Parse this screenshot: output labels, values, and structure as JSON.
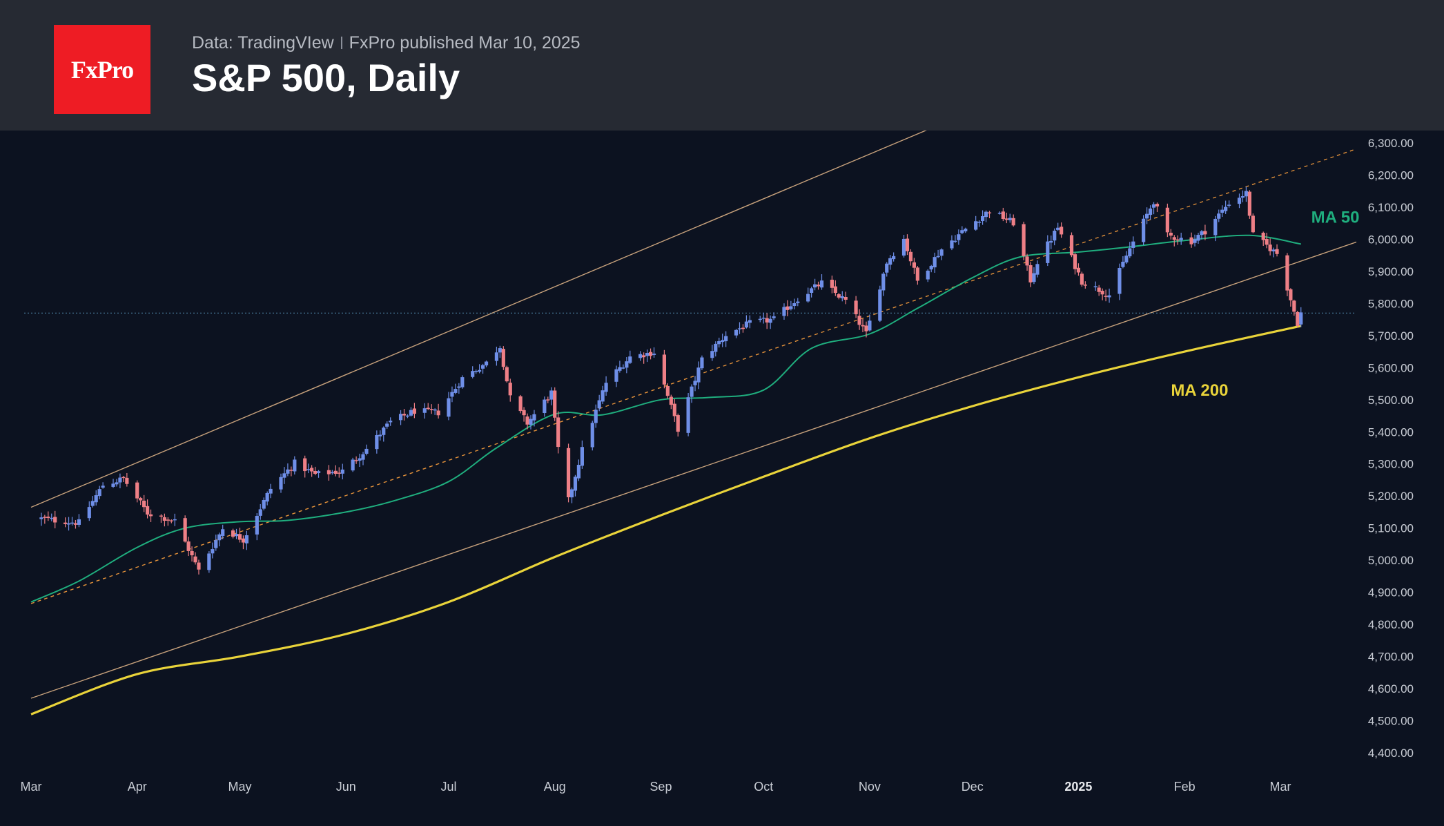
{
  "header": {
    "logo_text": "FxPro",
    "source_label": "Data: TradingVIew",
    "published_label": "FxPro published Mar 10, 2025",
    "title": "S&P 500, Daily"
  },
  "colors": {
    "background": "#0c1220",
    "header_background": "#262a33",
    "logo_red": "#ee1c24",
    "candle_up": "#6f8fe8",
    "candle_down": "#ee7f86",
    "ma50": "#1fae7e",
    "ma200": "#e9d33a",
    "channel": "#c8a27c",
    "channel_mid": "#e3913a",
    "price_line": "#4a7fa0"
  },
  "chart_data": {
    "type": "candlestick",
    "title": "S&P 500, Daily",
    "y_axis": {
      "ticks": [
        4400,
        4500,
        4600,
        4700,
        4800,
        4900,
        5000,
        5100,
        5200,
        5300,
        5400,
        5500,
        5600,
        5700,
        5800,
        5900,
        6000,
        6100,
        6200,
        6300
      ],
      "tick_labels": [
        "4,400.00",
        "4,500.00",
        "4,600.00",
        "4,700.00",
        "4,800.00",
        "4,900.00",
        "5,000.00",
        "5,100.00",
        "5,200.00",
        "5,300.00",
        "5,400.00",
        "5,500.00",
        "5,600.00",
        "5,700.00",
        "5,800.00",
        "5,900.00",
        "6,000.00",
        "6,100.00",
        "6,200.00",
        "6,300.00"
      ],
      "range": [
        4400,
        6310
      ],
      "side": "right"
    },
    "x_axis": {
      "range": [
        "2024-03-01",
        "2025-03-31"
      ],
      "ticks": [
        {
          "date": "2024-03-01",
          "label": "Mar",
          "bold": false
        },
        {
          "date": "2024-04-01",
          "label": "Apr",
          "bold": false
        },
        {
          "date": "2024-05-01",
          "label": "May",
          "bold": false
        },
        {
          "date": "2024-06-01",
          "label": "Jun",
          "bold": false
        },
        {
          "date": "2024-07-01",
          "label": "Jul",
          "bold": false
        },
        {
          "date": "2024-08-01",
          "label": "Aug",
          "bold": false
        },
        {
          "date": "2024-09-01",
          "label": "Sep",
          "bold": false
        },
        {
          "date": "2024-10-01",
          "label": "Oct",
          "bold": false
        },
        {
          "date": "2024-11-01",
          "label": "Nov",
          "bold": false
        },
        {
          "date": "2024-12-01",
          "label": "Dec",
          "bold": false
        },
        {
          "date": "2025-01-01",
          "label": "2025",
          "bold": true
        },
        {
          "date": "2025-02-01",
          "label": "Feb",
          "bold": false
        },
        {
          "date": "2025-03-01",
          "label": "Mar",
          "bold": false
        }
      ]
    },
    "close_path": [
      [
        "2024-03-04",
        5130
      ],
      [
        "2024-03-08",
        5124
      ],
      [
        "2024-03-15",
        5117
      ],
      [
        "2024-03-22",
        5234
      ],
      [
        "2024-03-28",
        5254
      ],
      [
        "2024-04-04",
        5147
      ],
      [
        "2024-04-12",
        5123
      ],
      [
        "2024-04-19",
        4967
      ],
      [
        "2024-04-26",
        5100
      ],
      [
        "2024-05-02",
        5064
      ],
      [
        "2024-05-10",
        5223
      ],
      [
        "2024-05-17",
        5303
      ],
      [
        "2024-05-23",
        5267
      ],
      [
        "2024-05-31",
        5278
      ],
      [
        "2024-06-07",
        5347
      ],
      [
        "2024-06-14",
        5431
      ],
      [
        "2024-06-21",
        5465
      ],
      [
        "2024-06-28",
        5460
      ],
      [
        "2024-07-05",
        5567
      ],
      [
        "2024-07-12",
        5615
      ],
      [
        "2024-07-16",
        5667
      ],
      [
        "2024-07-19",
        5505
      ],
      [
        "2024-07-24",
        5427
      ],
      [
        "2024-07-31",
        5522
      ],
      [
        "2024-08-02",
        5346
      ],
      [
        "2024-08-05",
        5186
      ],
      [
        "2024-08-09",
        5344
      ],
      [
        "2024-08-16",
        5554
      ],
      [
        "2024-08-23",
        5634
      ],
      [
        "2024-08-30",
        5648
      ],
      [
        "2024-09-06",
        5408
      ],
      [
        "2024-09-13",
        5626
      ],
      [
        "2024-09-20",
        5702
      ],
      [
        "2024-09-27",
        5738
      ],
      [
        "2024-10-04",
        5751
      ],
      [
        "2024-10-11",
        5815
      ],
      [
        "2024-10-18",
        5864
      ],
      [
        "2024-10-25",
        5808
      ],
      [
        "2024-10-31",
        5705
      ],
      [
        "2024-11-06",
        5929
      ],
      [
        "2024-11-11",
        6001
      ],
      [
        "2024-11-15",
        5870
      ],
      [
        "2024-11-22",
        5969
      ],
      [
        "2024-11-29",
        6032
      ],
      [
        "2024-12-06",
        6090
      ],
      [
        "2024-12-13",
        6051
      ],
      [
        "2024-12-18",
        5872
      ],
      [
        "2024-12-20",
        5930
      ],
      [
        "2024-12-26",
        6037
      ],
      [
        "2025-01-02",
        5869
      ],
      [
        "2025-01-10",
        5827
      ],
      [
        "2025-01-15",
        5949
      ],
      [
        "2025-01-23",
        6119
      ],
      [
        "2025-01-27",
        6012
      ],
      [
        "2025-02-03",
        5994
      ],
      [
        "2025-02-07",
        6026
      ],
      [
        "2025-02-14",
        6114
      ],
      [
        "2025-02-19",
        6144
      ],
      [
        "2025-02-21",
        6013
      ],
      [
        "2025-02-28",
        5955
      ],
      [
        "2025-03-03",
        5849
      ],
      [
        "2025-03-06",
        5739
      ],
      [
        "2025-03-07",
        5770
      ]
    ],
    "series": [
      {
        "name": "MA 50",
        "color": "#1fae7e",
        "points": [
          [
            "2024-03-01",
            4870
          ],
          [
            "2024-03-15",
            4935
          ],
          [
            "2024-04-01",
            5040
          ],
          [
            "2024-04-15",
            5100
          ],
          [
            "2024-05-01",
            5120
          ],
          [
            "2024-05-15",
            5124
          ],
          [
            "2024-06-01",
            5150
          ],
          [
            "2024-06-15",
            5185
          ],
          [
            "2024-07-01",
            5245
          ],
          [
            "2024-07-15",
            5350
          ],
          [
            "2024-08-01",
            5455
          ],
          [
            "2024-08-15",
            5453
          ],
          [
            "2024-09-01",
            5500
          ],
          [
            "2024-09-15",
            5507
          ],
          [
            "2024-10-01",
            5530
          ],
          [
            "2024-10-15",
            5660
          ],
          [
            "2024-11-01",
            5705
          ],
          [
            "2024-11-15",
            5785
          ],
          [
            "2024-12-01",
            5880
          ],
          [
            "2024-12-15",
            5945
          ],
          [
            "2025-01-01",
            5960
          ],
          [
            "2025-01-15",
            5975
          ],
          [
            "2025-02-01",
            5996
          ],
          [
            "2025-02-20",
            6012
          ],
          [
            "2025-03-07",
            5985
          ]
        ]
      },
      {
        "name": "MA 200",
        "color": "#e9d33a",
        "points": [
          [
            "2024-03-01",
            4520
          ],
          [
            "2024-04-01",
            4645
          ],
          [
            "2024-05-01",
            4700
          ],
          [
            "2024-06-01",
            4770
          ],
          [
            "2024-07-01",
            4870
          ],
          [
            "2024-08-01",
            5010
          ],
          [
            "2024-09-01",
            5140
          ],
          [
            "2024-10-01",
            5260
          ],
          [
            "2024-11-01",
            5380
          ],
          [
            "2024-12-01",
            5480
          ],
          [
            "2025-01-01",
            5570
          ],
          [
            "2025-02-01",
            5650
          ],
          [
            "2025-03-07",
            5730
          ]
        ]
      }
    ],
    "channel": {
      "upper": [
        [
          "2024-03-01",
          5165
        ],
        [
          "2024-12-01",
          6400
        ]
      ],
      "middle": [
        [
          "2024-03-01",
          4865
        ],
        [
          "2025-03-31",
          6310
        ]
      ],
      "lower": [
        [
          "2024-03-01",
          4570
        ],
        [
          "2025-03-31",
          6020
        ]
      ]
    },
    "last_price": 5770,
    "annotations": [
      {
        "text": "MA 50",
        "color": "#1fae7e",
        "date": "2025-03-10",
        "value": 6052
      },
      {
        "text": "MA 200",
        "color": "#e9d33a",
        "date": "2025-01-28",
        "value": 5512
      }
    ],
    "grid": false,
    "legend": "none"
  }
}
